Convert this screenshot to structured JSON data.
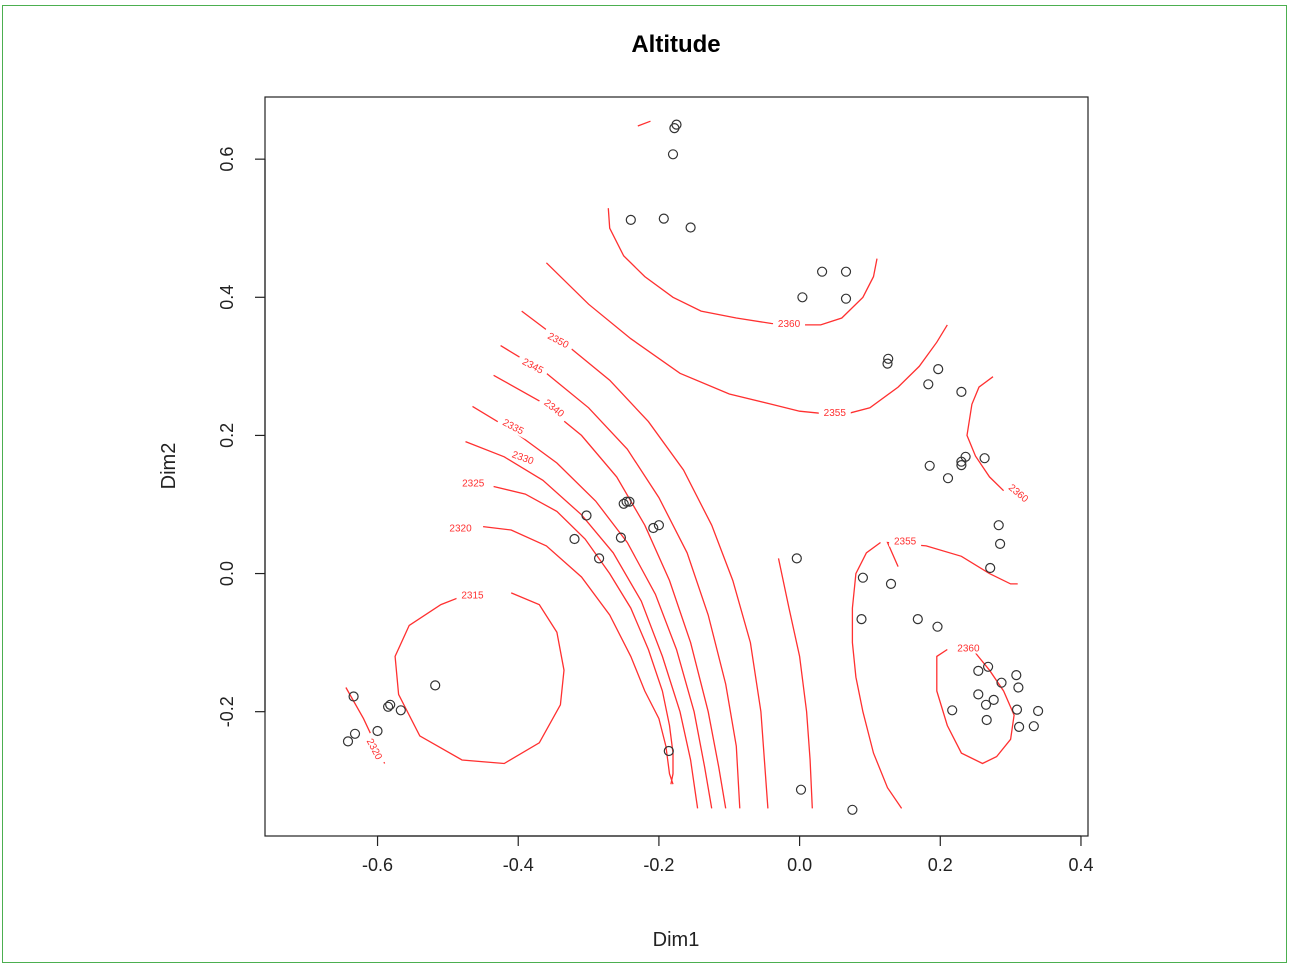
{
  "chart_data": {
    "type": "scatter",
    "title": "Altitude",
    "xlabel": "Dim1",
    "ylabel": "Dim2",
    "xlim": [
      -0.76,
      0.41
    ],
    "ylim": [
      -0.38,
      0.69
    ],
    "xticks": [
      "-0.6",
      "-0.4",
      "-0.2",
      "0.0",
      "0.2",
      "0.4"
    ],
    "yticks": [
      "-0.2",
      "0.0",
      "0.2",
      "0.4",
      "0.6"
    ],
    "point_color": "#333333",
    "contour_color": "#ff3030",
    "points": [
      [
        -0.175,
        0.65
      ],
      [
        -0.178,
        0.645
      ],
      [
        -0.18,
        0.607
      ],
      [
        -0.24,
        0.512
      ],
      [
        -0.193,
        0.514
      ],
      [
        -0.155,
        0.501
      ],
      [
        0.032,
        0.437
      ],
      [
        0.066,
        0.437
      ],
      [
        0.004,
        0.4
      ],
      [
        0.066,
        0.398
      ],
      [
        0.126,
        0.311
      ],
      [
        0.125,
        0.304
      ],
      [
        0.197,
        0.296
      ],
      [
        0.183,
        0.274
      ],
      [
        0.23,
        0.263
      ],
      [
        0.23,
        0.162
      ],
      [
        0.23,
        0.157
      ],
      [
        0.236,
        0.169
      ],
      [
        0.263,
        0.167
      ],
      [
        0.185,
        0.156
      ],
      [
        0.211,
        0.138
      ],
      [
        -0.246,
        0.104
      ],
      [
        -0.242,
        0.104
      ],
      [
        -0.25,
        0.101
      ],
      [
        -0.303,
        0.084
      ],
      [
        -0.208,
        0.066
      ],
      [
        -0.2,
        0.07
      ],
      [
        -0.32,
        0.05
      ],
      [
        -0.254,
        0.052
      ],
      [
        -0.285,
        0.022
      ],
      [
        -0.004,
        0.022
      ],
      [
        0.283,
        0.07
      ],
      [
        0.285,
        0.043
      ],
      [
        0.271,
        0.008
      ],
      [
        0.09,
        -0.006
      ],
      [
        0.13,
        -0.015
      ],
      [
        0.088,
        -0.066
      ],
      [
        0.168,
        -0.066
      ],
      [
        0.196,
        -0.077
      ],
      [
        -0.518,
        -0.162
      ],
      [
        -0.634,
        -0.178
      ],
      [
        -0.585,
        -0.193
      ],
      [
        -0.582,
        -0.19
      ],
      [
        -0.567,
        -0.198
      ],
      [
        -0.6,
        -0.228
      ],
      [
        -0.632,
        -0.232
      ],
      [
        -0.642,
        -0.243
      ],
      [
        -0.186,
        -0.257
      ],
      [
        0.002,
        -0.313
      ],
      [
        0.075,
        -0.342
      ],
      [
        0.254,
        -0.141
      ],
      [
        0.268,
        -0.135
      ],
      [
        0.308,
        -0.147
      ],
      [
        0.287,
        -0.158
      ],
      [
        0.311,
        -0.165
      ],
      [
        0.254,
        -0.175
      ],
      [
        0.276,
        -0.183
      ],
      [
        0.265,
        -0.19
      ],
      [
        0.217,
        -0.198
      ],
      [
        0.309,
        -0.197
      ],
      [
        0.339,
        -0.199
      ],
      [
        0.266,
        -0.212
      ],
      [
        0.312,
        -0.222
      ],
      [
        0.333,
        -0.221
      ]
    ],
    "contours": [
      {
        "level": "2315",
        "label_at": [
          -0.465,
          -0.033
        ],
        "label_angle": 0,
        "path": [
          [
            -0.41,
            -0.028
          ],
          [
            -0.37,
            -0.045
          ],
          [
            -0.345,
            -0.085
          ],
          [
            -0.335,
            -0.14
          ],
          [
            -0.34,
            -0.19
          ],
          [
            -0.37,
            -0.245
          ],
          [
            -0.42,
            -0.275
          ],
          [
            -0.48,
            -0.27
          ],
          [
            -0.54,
            -0.235
          ],
          [
            -0.57,
            -0.175
          ],
          [
            -0.575,
            -0.12
          ],
          [
            -0.555,
            -0.075
          ],
          [
            -0.51,
            -0.045
          ],
          [
            -0.48,
            -0.033
          ]
        ]
      },
      {
        "level": "2320",
        "label_at": [
          -0.606,
          -0.255
        ],
        "label_angle": 62,
        "path": [
          [
            -0.645,
            -0.165
          ],
          [
            -0.62,
            -0.21
          ],
          [
            -0.59,
            -0.275
          ]
        ]
      },
      {
        "level": "2320",
        "label_at": [
          -0.482,
          0.064
        ],
        "label_angle": 0,
        "path": [
          [
            -0.45,
            0.068
          ],
          [
            -0.41,
            0.063
          ],
          [
            -0.36,
            0.04
          ],
          [
            -0.31,
            -0.005
          ],
          [
            -0.27,
            -0.06
          ],
          [
            -0.24,
            -0.12
          ],
          [
            -0.22,
            -0.17
          ],
          [
            -0.2,
            -0.21
          ],
          [
            -0.19,
            -0.25
          ],
          [
            -0.185,
            -0.29
          ],
          [
            -0.18,
            -0.305
          ]
        ]
      },
      {
        "level": "2325",
        "label_at": [
          -0.464,
          0.129
        ],
        "label_angle": 0,
        "path": [
          [
            -0.435,
            0.126
          ],
          [
            -0.39,
            0.115
          ],
          [
            -0.345,
            0.09
          ],
          [
            -0.305,
            0.05
          ],
          [
            -0.27,
            0.0
          ],
          [
            -0.24,
            -0.05
          ],
          [
            -0.215,
            -0.11
          ],
          [
            -0.195,
            -0.17
          ],
          [
            -0.185,
            -0.22
          ],
          [
            -0.18,
            -0.26
          ],
          [
            -0.18,
            -0.29
          ],
          [
            -0.183,
            -0.305
          ]
        ]
      },
      {
        "level": "2330",
        "label_at": [
          -0.394,
          0.166
        ],
        "label_angle": 20,
        "path": [
          [
            -0.475,
            0.191
          ],
          [
            -0.42,
            0.169
          ],
          [
            -0.365,
            0.135
          ],
          [
            -0.31,
            0.085
          ],
          [
            -0.265,
            0.03
          ],
          [
            -0.225,
            -0.04
          ],
          [
            -0.195,
            -0.12
          ],
          [
            -0.17,
            -0.2
          ],
          [
            -0.155,
            -0.27
          ],
          [
            -0.145,
            -0.34
          ]
        ]
      },
      {
        "level": "2335",
        "label_at": [
          -0.408,
          0.211
        ],
        "label_angle": 28,
        "path": [
          [
            -0.465,
            0.242
          ],
          [
            -0.405,
            0.205
          ],
          [
            -0.345,
            0.16
          ],
          [
            -0.29,
            0.105
          ],
          [
            -0.245,
            0.045
          ],
          [
            -0.205,
            -0.03
          ],
          [
            -0.175,
            -0.11
          ],
          [
            -0.15,
            -0.2
          ],
          [
            -0.135,
            -0.28
          ],
          [
            -0.125,
            -0.34
          ]
        ]
      },
      {
        "level": "2340",
        "label_at": [
          -0.35,
          0.238
        ],
        "label_angle": 38,
        "path": [
          [
            -0.435,
            0.287
          ],
          [
            -0.37,
            0.25
          ],
          [
            -0.31,
            0.2
          ],
          [
            -0.26,
            0.14
          ],
          [
            -0.22,
            0.07
          ],
          [
            -0.185,
            -0.01
          ],
          [
            -0.155,
            -0.1
          ],
          [
            -0.13,
            -0.2
          ],
          [
            -0.115,
            -0.28
          ],
          [
            -0.105,
            -0.34
          ]
        ]
      },
      {
        "level": "2345",
        "label_at": [
          -0.38,
          0.299
        ],
        "label_angle": 28,
        "path": [
          [
            -0.425,
            0.33
          ],
          [
            -0.36,
            0.29
          ],
          [
            -0.3,
            0.24
          ],
          [
            -0.245,
            0.18
          ],
          [
            -0.2,
            0.11
          ],
          [
            -0.16,
            0.03
          ],
          [
            -0.13,
            -0.06
          ],
          [
            -0.105,
            -0.16
          ],
          [
            -0.09,
            -0.25
          ],
          [
            -0.085,
            -0.34
          ]
        ]
      },
      {
        "level": "2350",
        "label_at": [
          -0.344,
          0.336
        ],
        "label_angle": 28,
        "path": [
          [
            -0.395,
            0.38
          ],
          [
            -0.33,
            0.33
          ],
          [
            -0.27,
            0.28
          ],
          [
            -0.215,
            0.22
          ],
          [
            -0.165,
            0.15
          ],
          [
            -0.125,
            0.07
          ],
          [
            -0.095,
            -0.01
          ],
          [
            -0.07,
            -0.1
          ],
          [
            -0.055,
            -0.2
          ],
          [
            -0.045,
            -0.34
          ]
        ]
      },
      {
        "level": "2355",
        "label_at": [
          0.05,
          0.231
        ],
        "label_angle": 0,
        "path": [
          [
            -0.36,
            0.45
          ],
          [
            -0.3,
            0.39
          ],
          [
            -0.24,
            0.34
          ],
          [
            -0.17,
            0.29
          ],
          [
            -0.1,
            0.26
          ],
          [
            -0.04,
            0.245
          ],
          [
            0.0,
            0.235
          ],
          [
            0.03,
            0.232
          ],
          [
            0.07,
            0.232
          ],
          [
            0.1,
            0.24
          ],
          [
            0.14,
            0.27
          ],
          [
            0.17,
            0.3
          ],
          [
            0.195,
            0.335
          ],
          [
            0.21,
            0.36
          ]
        ]
      },
      {
        "level": "2355",
        "label_at": [
          0.15,
          0.045
        ],
        "label_angle": 0,
        "path": [
          [
            0.14,
            0.01
          ],
          [
            0.125,
            0.045
          ],
          [
            0.18,
            0.04
          ],
          [
            0.23,
            0.025
          ],
          [
            0.27,
            0.0
          ],
          [
            0.3,
            -0.015
          ],
          [
            0.31,
            -0.015
          ]
        ]
      },
      {
        "level": "2355",
        "label_at": [
          0.0,
          0.0
        ],
        "label_angle": 0,
        "no_label": true,
        "path": [
          [
            0.115,
            0.045
          ],
          [
            0.095,
            0.03
          ],
          [
            0.08,
            0.0
          ],
          [
            0.075,
            -0.05
          ],
          [
            0.075,
            -0.1
          ],
          [
            0.08,
            -0.15
          ],
          [
            0.09,
            -0.2
          ],
          [
            0.105,
            -0.26
          ],
          [
            0.125,
            -0.31
          ],
          [
            0.145,
            -0.34
          ]
        ]
      },
      {
        "level": "2355",
        "label_at": [
          0.0,
          0.0
        ],
        "label_angle": 0,
        "no_label": true,
        "path": [
          [
            -0.03,
            0.022
          ],
          [
            -0.015,
            -0.05
          ],
          [
            0.0,
            -0.12
          ],
          [
            0.01,
            -0.2
          ],
          [
            0.015,
            -0.27
          ],
          [
            0.018,
            -0.34
          ]
        ]
      },
      {
        "level": "2360",
        "label_at": [
          -0.015,
          0.36
        ],
        "label_angle": 0,
        "path": [
          [
            -0.272,
            0.529
          ],
          [
            -0.27,
            0.5
          ],
          [
            -0.25,
            0.46
          ],
          [
            -0.22,
            0.43
          ],
          [
            -0.18,
            0.4
          ],
          [
            -0.14,
            0.38
          ],
          [
            -0.09,
            0.37
          ],
          [
            -0.04,
            0.362
          ],
          [
            0.0,
            0.36
          ],
          [
            0.03,
            0.36
          ],
          [
            0.06,
            0.37
          ],
          [
            0.09,
            0.4
          ],
          [
            0.105,
            0.43
          ],
          [
            0.11,
            0.456
          ]
        ]
      },
      {
        "level": "2360",
        "label_at": [
          0.24,
          -0.11
        ],
        "label_angle": 0,
        "path": [
          [
            0.23,
            -0.108
          ],
          [
            0.25,
            -0.115
          ],
          [
            0.27,
            -0.14
          ],
          [
            0.29,
            -0.17
          ],
          [
            0.305,
            -0.205
          ],
          [
            0.3,
            -0.24
          ],
          [
            0.28,
            -0.265
          ],
          [
            0.26,
            -0.275
          ],
          [
            0.23,
            -0.26
          ],
          [
            0.21,
            -0.22
          ],
          [
            0.195,
            -0.17
          ],
          [
            0.195,
            -0.12
          ],
          [
            0.21,
            -0.11
          ]
        ]
      },
      {
        "level": "2360",
        "label_at": [
          0.31,
          0.115
        ],
        "label_angle": 40,
        "path": [
          [
            0.275,
            0.285
          ],
          [
            0.255,
            0.27
          ],
          [
            0.245,
            0.245
          ],
          [
            0.238,
            0.2
          ],
          [
            0.25,
            0.17
          ],
          [
            0.27,
            0.14
          ],
          [
            0.29,
            0.12
          ]
        ]
      },
      {
        "level": "2340",
        "label_at": [
          0.0,
          0.0
        ],
        "label_angle": 0,
        "no_label": true,
        "path": [
          [
            -0.23,
            0.648
          ],
          [
            -0.212,
            0.655
          ]
        ]
      }
    ]
  }
}
